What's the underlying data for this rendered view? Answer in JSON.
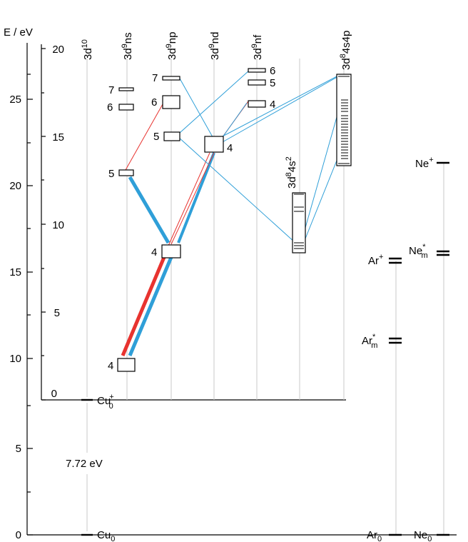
{
  "axis": {
    "label": "E / eV",
    "outer_ticks": [
      "0",
      "5",
      "10",
      "15",
      "20",
      "25"
    ],
    "inner_ticks": [
      "0",
      "5",
      "10",
      "15",
      "20"
    ]
  },
  "columns": {
    "c1": "3d",
    "c1_sup": "10",
    "c2": "3d",
    "c2_sup": "9",
    "c2_tail": "ns",
    "c3": "3d",
    "c3_sup": "9",
    "c3_tail": "np",
    "c4": "3d",
    "c4_sup": "9",
    "c4_tail": "nd",
    "c5": "3d",
    "c5_sup": "9",
    "c5_tail": "nf",
    "c6": "3d",
    "c6_sup": "8",
    "c6_mid": "4s",
    "c6_sup2": "2",
    "c7": "3d",
    "c7_sup": "8",
    "c7_tail": "4s4p"
  },
  "level_labels": {
    "ns4": "4",
    "ns5": "5",
    "ns6": "6",
    "ns7": "7",
    "np4": "4",
    "np5": "5",
    "np6": "6",
    "np7": "7",
    "nd4": "4",
    "nf4": "4",
    "nf5": "5",
    "nf6": "6"
  },
  "annotations": {
    "ion_energy": "7.72 eV",
    "cu_ion": "Cu",
    "cu_ion_sub": "0",
    "cu_ion_sup": "+",
    "cu_ground": "Cu",
    "cu_ground_sub": "0",
    "ar_ion": "Ar",
    "ar_ion_sup": "+",
    "ar_meta": "Ar",
    "ar_meta_sub": "m",
    "ar_meta_sup": "*",
    "ar_ground": "Ar",
    "ar_ground_sub": "0",
    "ne_ion": "Ne",
    "ne_ion_sup": "+",
    "ne_meta": "Ne",
    "ne_meta_sub": "m",
    "ne_meta_sup": "*",
    "ne_ground": "Ne",
    "ne_ground_sub": "0"
  },
  "colors": {
    "blue": "#2f9fd8",
    "red": "#e8332f",
    "guide": "#c8c8c8"
  }
}
